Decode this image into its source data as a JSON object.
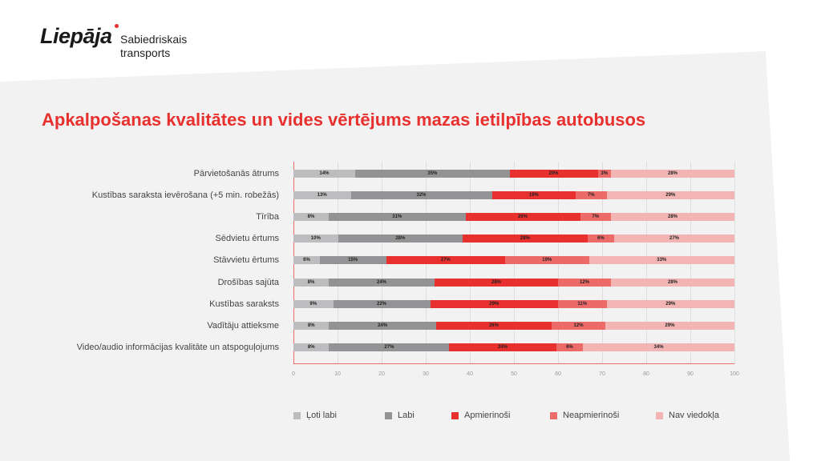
{
  "logo": {
    "brand": "Liepāja",
    "subtitle_line1": "Sabiedriskais",
    "subtitle_line2": "transports"
  },
  "chart_data": {
    "type": "bar",
    "orientation": "horizontal-stacked-100",
    "title": "Apkalpošanas kvalitātes un vides vērtējums mazas ietilpības autobusos",
    "categories": [
      "Pārvietošanās ātrums",
      "Kustības saraksta ievērošana (+5 min. robežās)",
      "Tīrība",
      "Sēdvietu ērtums",
      "Stāvvietu ērtums",
      "Drošības sajūta",
      "Kustības saraksts",
      "Vadītāju attieksme",
      "Video/audio informācijas kvalitāte un atspoguļojums"
    ],
    "series": [
      {
        "name": "Ļoti labi",
        "color": "#bdbdbf",
        "values": [
          14,
          13,
          8,
          10,
          6,
          8,
          9,
          8,
          8
        ]
      },
      {
        "name": "Labi",
        "color": "#939395",
        "values": [
          35,
          32,
          31,
          28,
          15,
          24,
          22,
          24,
          27
        ]
      },
      {
        "name": "Apmierinoši",
        "color": "#e8302e",
        "values": [
          20,
          19,
          26,
          28,
          27,
          28,
          29,
          26,
          24
        ]
      },
      {
        "name": "Neapmierinoši",
        "color": "#ec6a68",
        "values": [
          3,
          7,
          7,
          6,
          19,
          12,
          11,
          12,
          6
        ]
      },
      {
        "name": "Nav viedokļa",
        "color": "#f3b5b4",
        "values": [
          28,
          29,
          28,
          27,
          33,
          28,
          29,
          29,
          34
        ]
      }
    ],
    "xlim": [
      0,
      100
    ],
    "xticks": [
      "0",
      "10",
      "20",
      "30",
      "40",
      "50",
      "60",
      "70",
      "80",
      "90",
      "100"
    ],
    "legend_position": "bottom",
    "grid": true
  }
}
